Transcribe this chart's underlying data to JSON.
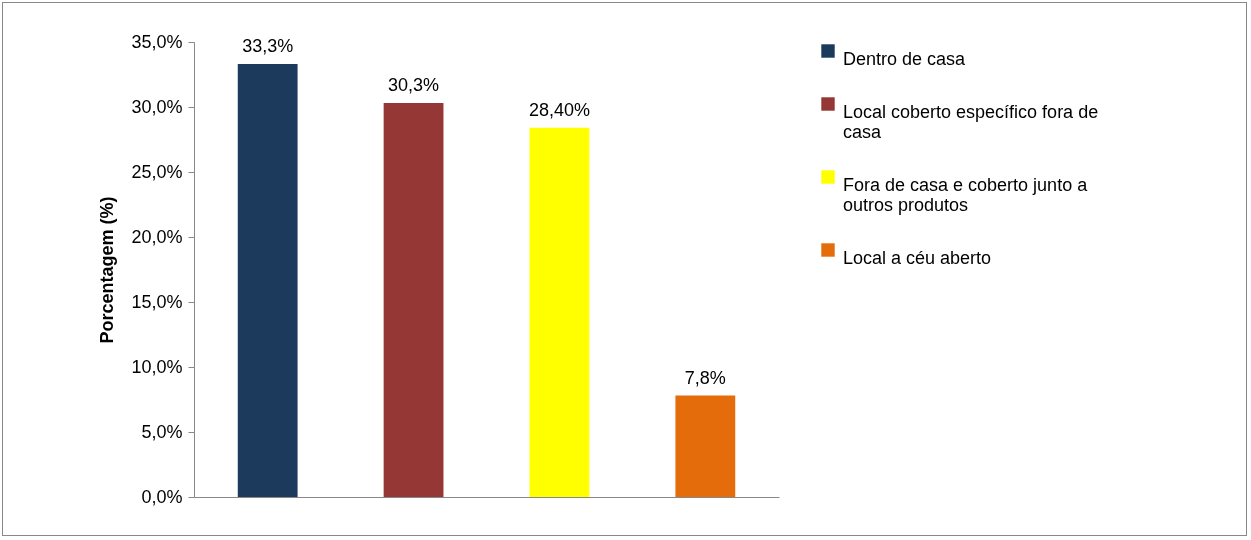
{
  "chart_data": {
    "type": "bar",
    "ylabel": "Porcentagem (%)",
    "categories": [
      null,
      null,
      null,
      null
    ],
    "ylim": [
      0,
      35
    ],
    "yticks": [
      {
        "value": 0,
        "label": "0,0%"
      },
      {
        "value": 5,
        "label": "5,0%"
      },
      {
        "value": 10,
        "label": "10,0%"
      },
      {
        "value": 15,
        "label": "15,0%"
      },
      {
        "value": 20,
        "label": "20,0%"
      },
      {
        "value": 25,
        "label": "25,0%"
      },
      {
        "value": 30,
        "label": "30,0%"
      },
      {
        "value": 35,
        "label": "35,0%"
      }
    ],
    "grid": false,
    "legend": "right",
    "series": [
      {
        "name": "Dentro de casa",
        "color": "#1b3a5c",
        "values": [
          33.3,
          null,
          null,
          null
        ],
        "value_labels": [
          "33,3%",
          null,
          null,
          null
        ]
      },
      {
        "name": "Local coberto específico fora de casa",
        "color": "#953735",
        "values": [
          null,
          30.3,
          null,
          null
        ],
        "value_labels": [
          null,
          "30,3%",
          null,
          null
        ]
      },
      {
        "name": "Fora de casa e coberto junto a outros produtos",
        "color": "#ffff00",
        "values": [
          null,
          null,
          28.4,
          null
        ],
        "value_labels": [
          null,
          null,
          "28,40%",
          null
        ]
      },
      {
        "name": "Local a céu aberto",
        "color": "#e46c0a",
        "values": [
          null,
          null,
          null,
          7.8
        ],
        "value_labels": [
          null,
          null,
          null,
          "7,8%"
        ]
      }
    ]
  }
}
